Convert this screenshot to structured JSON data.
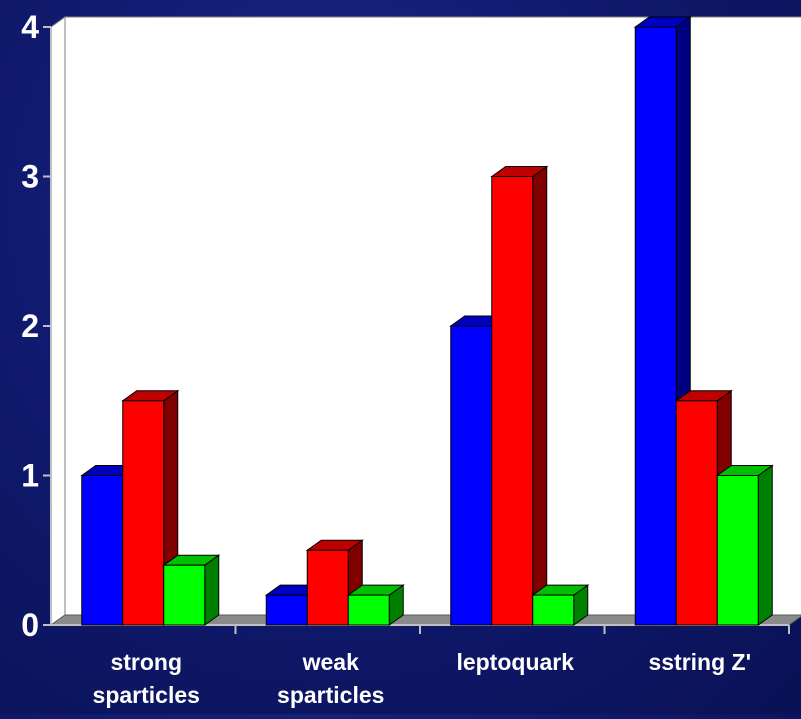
{
  "chart_data": {
    "type": "bar",
    "categories": [
      [
        "strong",
        "sparticles"
      ],
      [
        "weak",
        "sparticles"
      ],
      [
        "leptoquark"
      ],
      [
        "sstring Z'"
      ]
    ],
    "series": [
      {
        "color": "#0000ff",
        "values": [
          1.0,
          0.2,
          2.0,
          4.0
        ]
      },
      {
        "color": "#ff0000",
        "values": [
          1.5,
          0.5,
          3.0,
          1.5
        ]
      },
      {
        "color": "#00ff00",
        "values": [
          0.4,
          0.2,
          0.2,
          1.0
        ]
      }
    ],
    "yticks": [
      "0",
      "1",
      "2",
      "3",
      "4"
    ],
    "ylim": [
      0,
      4
    ],
    "grid": false,
    "style": "3d-bars"
  }
}
